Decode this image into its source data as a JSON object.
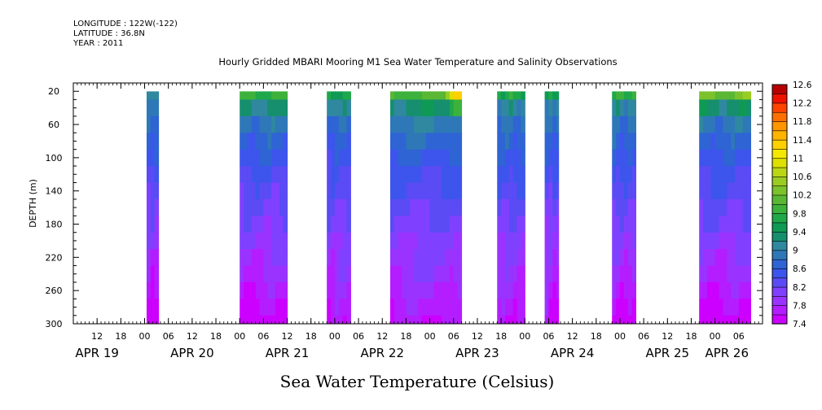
{
  "header": {
    "longitude": "LONGITUDE : 122W(-122)",
    "latitude": "LATITUDE : 36.8N",
    "year": "YEAR : 2011"
  },
  "chart_data": {
    "type": "heatmap",
    "title": "Hourly Gridded MBARI Mooring M1 Sea Water Temperature and Salinity Observations",
    "ylabel": "DEPTH (m)",
    "xlabel": "Sea Water Temperature (Celsius)",
    "x_unit": "hours since APR 19 00:00, 2011",
    "xlim": [
      6,
      180
    ],
    "ylim": [
      300,
      10
    ],
    "y_ticks": [
      20,
      60,
      100,
      140,
      180,
      220,
      260,
      300
    ],
    "x_hour_ticks": [
      {
        "h": 12,
        "label": "12"
      },
      {
        "h": 18,
        "label": "18"
      },
      {
        "h": 24,
        "label": "00"
      },
      {
        "h": 30,
        "label": "06"
      },
      {
        "h": 36,
        "label": "12"
      },
      {
        "h": 42,
        "label": "18"
      },
      {
        "h": 48,
        "label": "00"
      },
      {
        "h": 54,
        "label": "06"
      },
      {
        "h": 60,
        "label": "12"
      },
      {
        "h": 66,
        "label": "18"
      },
      {
        "h": 72,
        "label": "00"
      },
      {
        "h": 78,
        "label": "06"
      },
      {
        "h": 84,
        "label": "12"
      },
      {
        "h": 90,
        "label": "18"
      },
      {
        "h": 96,
        "label": "00"
      },
      {
        "h": 102,
        "label": "06"
      },
      {
        "h": 108,
        "label": "12"
      },
      {
        "h": 114,
        "label": "18"
      },
      {
        "h": 120,
        "label": "00"
      },
      {
        "h": 126,
        "label": "06"
      },
      {
        "h": 132,
        "label": "12"
      },
      {
        "h": 138,
        "label": "18"
      },
      {
        "h": 144,
        "label": "00"
      },
      {
        "h": 150,
        "label": "06"
      },
      {
        "h": 156,
        "label": "12"
      },
      {
        "h": 162,
        "label": "18"
      },
      {
        "h": 168,
        "label": "00"
      },
      {
        "h": 174,
        "label": "06"
      }
    ],
    "x_day_labels": [
      {
        "h": 12,
        "label": "APR 19"
      },
      {
        "h": 36,
        "label": "APR 20"
      },
      {
        "h": 60,
        "label": "APR 21"
      },
      {
        "h": 84,
        "label": "APR 22"
      },
      {
        "h": 108,
        "label": "APR 23"
      },
      {
        "h": 132,
        "label": "APR 24"
      },
      {
        "h": 156,
        "label": "APR 25"
      },
      {
        "h": 171,
        "label": "APR 26"
      }
    ],
    "depths": [
      20,
      40,
      60,
      80,
      100,
      120,
      140,
      160,
      180,
      200,
      220,
      240,
      260,
      280,
      300
    ],
    "data_blocks": [
      {
        "start_h": 24.5,
        "end_h": 27.5,
        "profile": [
          9.1,
          8.9,
          8.7,
          8.6,
          8.5,
          8.4,
          8.3,
          8.2,
          8.1,
          8.0,
          7.9,
          7.75,
          7.65,
          7.55,
          7.45
        ]
      },
      {
        "start_h": 48,
        "end_h": 60,
        "profile": [
          9.8,
          9.2,
          8.9,
          8.7,
          8.55,
          8.4,
          8.3,
          8.2,
          8.1,
          8.0,
          7.95,
          7.85,
          7.75,
          7.6,
          7.5
        ]
      },
      {
        "start_h": 70,
        "end_h": 76,
        "profile": [
          9.6,
          9.1,
          8.8,
          8.65,
          8.5,
          8.4,
          8.3,
          8.2,
          8.1,
          8.0,
          7.95,
          7.9,
          7.8,
          7.7,
          7.6
        ]
      },
      {
        "start_h": 86,
        "end_h": 104,
        "profile": [
          10.0,
          9.3,
          8.95,
          8.75,
          8.6,
          8.45,
          8.35,
          8.25,
          8.15,
          8.05,
          7.95,
          7.85,
          7.75,
          7.65,
          7.55
        ]
      },
      {
        "start_h": 113,
        "end_h": 120,
        "profile": [
          9.7,
          9.1,
          8.85,
          8.7,
          8.55,
          8.45,
          8.35,
          8.25,
          8.15,
          8.05,
          7.95,
          7.85,
          7.75,
          7.65,
          7.55
        ]
      },
      {
        "start_h": 125,
        "end_h": 128.5,
        "profile": [
          9.6,
          9.0,
          8.8,
          8.65,
          8.5,
          8.4,
          8.3,
          8.2,
          8.1,
          8.0,
          7.9,
          7.8,
          7.7,
          7.6,
          7.5
        ]
      },
      {
        "start_h": 142,
        "end_h": 148,
        "profile": [
          9.8,
          9.1,
          8.85,
          8.7,
          8.55,
          8.45,
          8.35,
          8.25,
          8.15,
          8.05,
          7.95,
          7.85,
          7.75,
          7.65,
          7.55
        ]
      },
      {
        "start_h": 164,
        "end_h": 177,
        "profile": [
          10.2,
          9.3,
          8.9,
          8.7,
          8.55,
          8.45,
          8.35,
          8.25,
          8.15,
          8.05,
          7.95,
          7.85,
          7.75,
          7.6,
          7.5
        ]
      }
    ],
    "hotspots": [
      {
        "h": 103,
        "depth": 20,
        "value": 11.6
      },
      {
        "h": 176,
        "depth": 20,
        "value": 10.8
      }
    ],
    "colorbar": {
      "levels": [
        7.4,
        7.6,
        7.8,
        8.0,
        8.2,
        8.4,
        8.6,
        8.8,
        9.0,
        9.2,
        9.4,
        9.6,
        9.8,
        10.0,
        10.2,
        10.4,
        10.6,
        10.8,
        11.0,
        11.2,
        11.4,
        11.6,
        11.8,
        12.0,
        12.2,
        12.4,
        12.6
      ],
      "labels": [
        "7.4",
        "7.8",
        "8.2",
        "8.6",
        "9",
        "9.4",
        "9.8",
        "10.2",
        "10.6",
        "11",
        "11.4",
        "11.8",
        "12.2",
        "12.6"
      ],
      "colors": [
        "#cc00ff",
        "#b31dff",
        "#9a33ff",
        "#8040ff",
        "#5a4bf5",
        "#3d55ec",
        "#2e64d4",
        "#2f78b8",
        "#2f88a0",
        "#168f6e",
        "#0e9a55",
        "#1ea84a",
        "#3cb23c",
        "#5ab734",
        "#7bc22c",
        "#9bcc22",
        "#bcd615",
        "#dde000",
        "#f5e800",
        "#ffd000",
        "#ffb400",
        "#ff9600",
        "#ff6f00",
        "#ff4400",
        "#ee1100",
        "#b80000"
      ]
    }
  }
}
